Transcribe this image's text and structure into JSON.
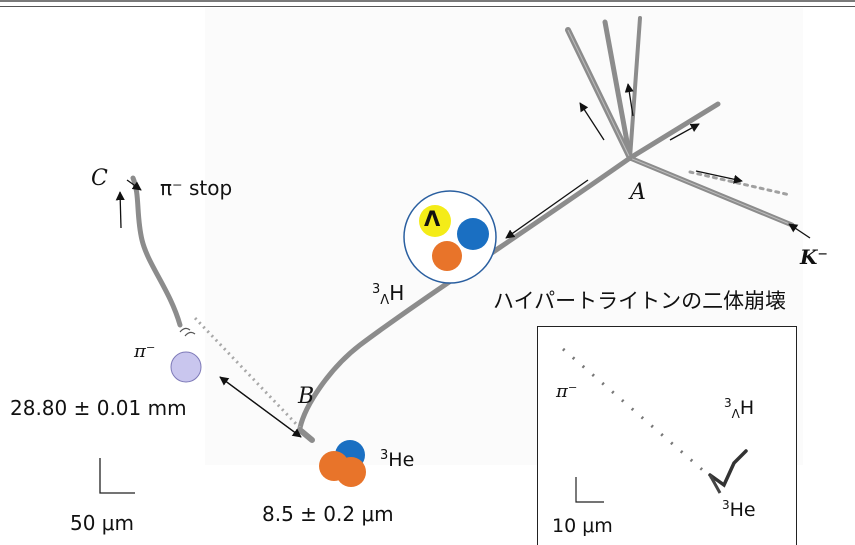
{
  "labels": {
    "A": "A",
    "B": "B",
    "C": "C",
    "kminus": "K⁻",
    "pi_stop": "π⁻ stop",
    "hypertriton_sym": "³ΛH",
    "hypertriton_base": "H",
    "hypertriton_sup": "3",
    "hypertriton_sub": "Λ",
    "caption_jp": "ハイパートライトンの二体崩壊",
    "pi_minus": "π⁻",
    "pi_length": "28.80 ± 0.01 mm",
    "he3_sup": "3",
    "he3_base": "He",
    "he3_range": "8.5 ± 0.2 μm",
    "scale_main": "50 μm",
    "lambda_letter": "Λ"
  },
  "inset": {
    "pi_minus": "π⁻",
    "hypertriton_sup": "3",
    "hypertriton_sub": "Λ",
    "hypertriton_base": "H",
    "he3_sup": "3",
    "he3_base": "He",
    "scale": "10 μm"
  },
  "colors": {
    "track": "#8c8c8c",
    "lambda": "#f4ec18",
    "blue_ball": "#1a6fc2",
    "orange_ball": "#e8742a",
    "pion_ball": "#c9c6ee",
    "circle_border": "#2a5fa0"
  }
}
